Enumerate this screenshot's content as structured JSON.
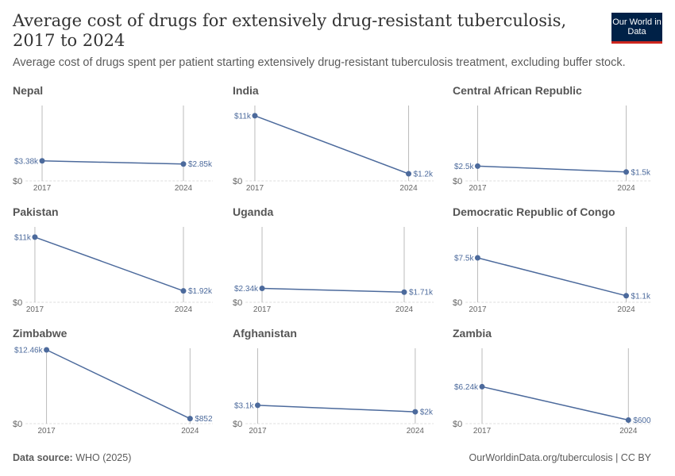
{
  "title": "Average cost of drugs for extensively drug-resistant tuberculosis, 2017 to 2024",
  "subtitle": "Average cost of drugs spent per patient starting extensively drug-resistant tuberculosis treatment, excluding buffer stock.",
  "logo": "Our World in Data",
  "footer": {
    "source_label": "Data source:",
    "source": "WHO (2025)",
    "url": "OurWorldinData.org/tuberculosis | CC BY"
  },
  "colors": {
    "line": "#4c6a9c",
    "label": "#4c6a9c",
    "axis": "#bbbbbb",
    "text": "#5b5b5b"
  },
  "chart_data": {
    "type": "line",
    "layout": "small-multiples 3x3",
    "x": [
      "2017",
      "2024"
    ],
    "ylim": [
      0,
      12460
    ],
    "y_tick_label": "$0",
    "panels": [
      {
        "name": "Nepal",
        "values": [
          3380,
          2850
        ],
        "labels": [
          "$3.38k",
          "$2.85k"
        ]
      },
      {
        "name": "India",
        "values": [
          11000,
          1200
        ],
        "labels": [
          "$11k",
          "$1.2k"
        ]
      },
      {
        "name": "Central African Republic",
        "values": [
          2500,
          1500
        ],
        "labels": [
          "$2.5k",
          "$1.5k"
        ]
      },
      {
        "name": "Pakistan",
        "values": [
          11000,
          1920
        ],
        "labels": [
          "$11k",
          "$1.92k"
        ]
      },
      {
        "name": "Uganda",
        "values": [
          2340,
          1710
        ],
        "labels": [
          "$2.34k",
          "$1.71k"
        ]
      },
      {
        "name": "Democratic Republic of Congo",
        "values": [
          7500,
          1100
        ],
        "labels": [
          "$7.5k",
          "$1.1k"
        ]
      },
      {
        "name": "Zimbabwe",
        "values": [
          12460,
          852
        ],
        "labels": [
          "$12.46k",
          "$852"
        ]
      },
      {
        "name": "Afghanistan",
        "values": [
          3100,
          2000
        ],
        "labels": [
          "$3.1k",
          "$2k"
        ]
      },
      {
        "name": "Zambia",
        "values": [
          6240,
          600
        ],
        "labels": [
          "$6.24k",
          "$600"
        ]
      }
    ]
  }
}
